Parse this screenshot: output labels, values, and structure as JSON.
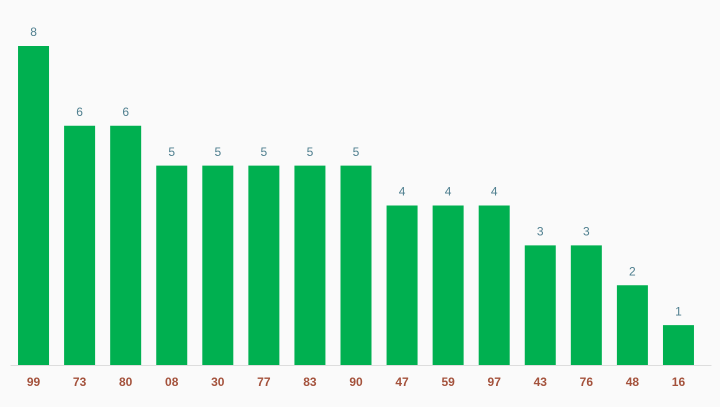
{
  "chart_data": {
    "type": "bar",
    "categories": [
      "99",
      "73",
      "80",
      "08",
      "30",
      "77",
      "83",
      "90",
      "47",
      "59",
      "97",
      "43",
      "76",
      "48",
      "16"
    ],
    "values": [
      8,
      6,
      6,
      5,
      5,
      5,
      5,
      5,
      4,
      4,
      4,
      3,
      3,
      2,
      1
    ],
    "color": "#00b050"
  }
}
